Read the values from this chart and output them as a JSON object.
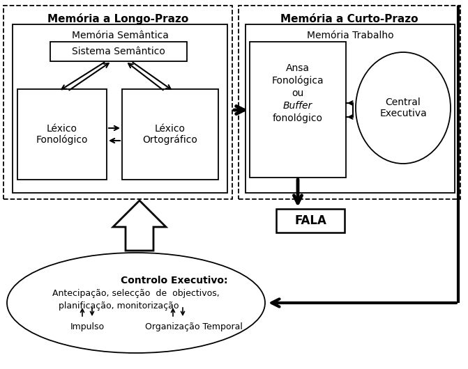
{
  "bg_color": "#ffffff",
  "longo_prazo_title": "Memória a Longo-Prazo",
  "curto_prazo_title": "Memória a Curto-Prazo",
  "mem_semantica_label": "Memória Semântica",
  "sistema_semantico_label": "Sistema Semântico",
  "lexico_fon_label": "Léxico\nFonológico",
  "lexico_ort_label": "Léxico\nOrtográfico",
  "mem_trabalho_label": "Memória Trabalho",
  "ansa_line1": "Ansa",
  "ansa_line2": "Fonológica",
  "ansa_line3": "ou",
  "ansa_line4": "Buffer",
  "ansa_line5": "fonológico",
  "central_exec_label": "Central\nExecutiva",
  "fala_label": "FALA",
  "controlo_title": "Controlo Executivo:",
  "controlo_text1": "Antecipação, selecção  de  objectivos,",
  "controlo_text2": "planificação, monitorização",
  "impulso_label": "Impulso",
  "org_temporal_label": "Organização Temporal"
}
